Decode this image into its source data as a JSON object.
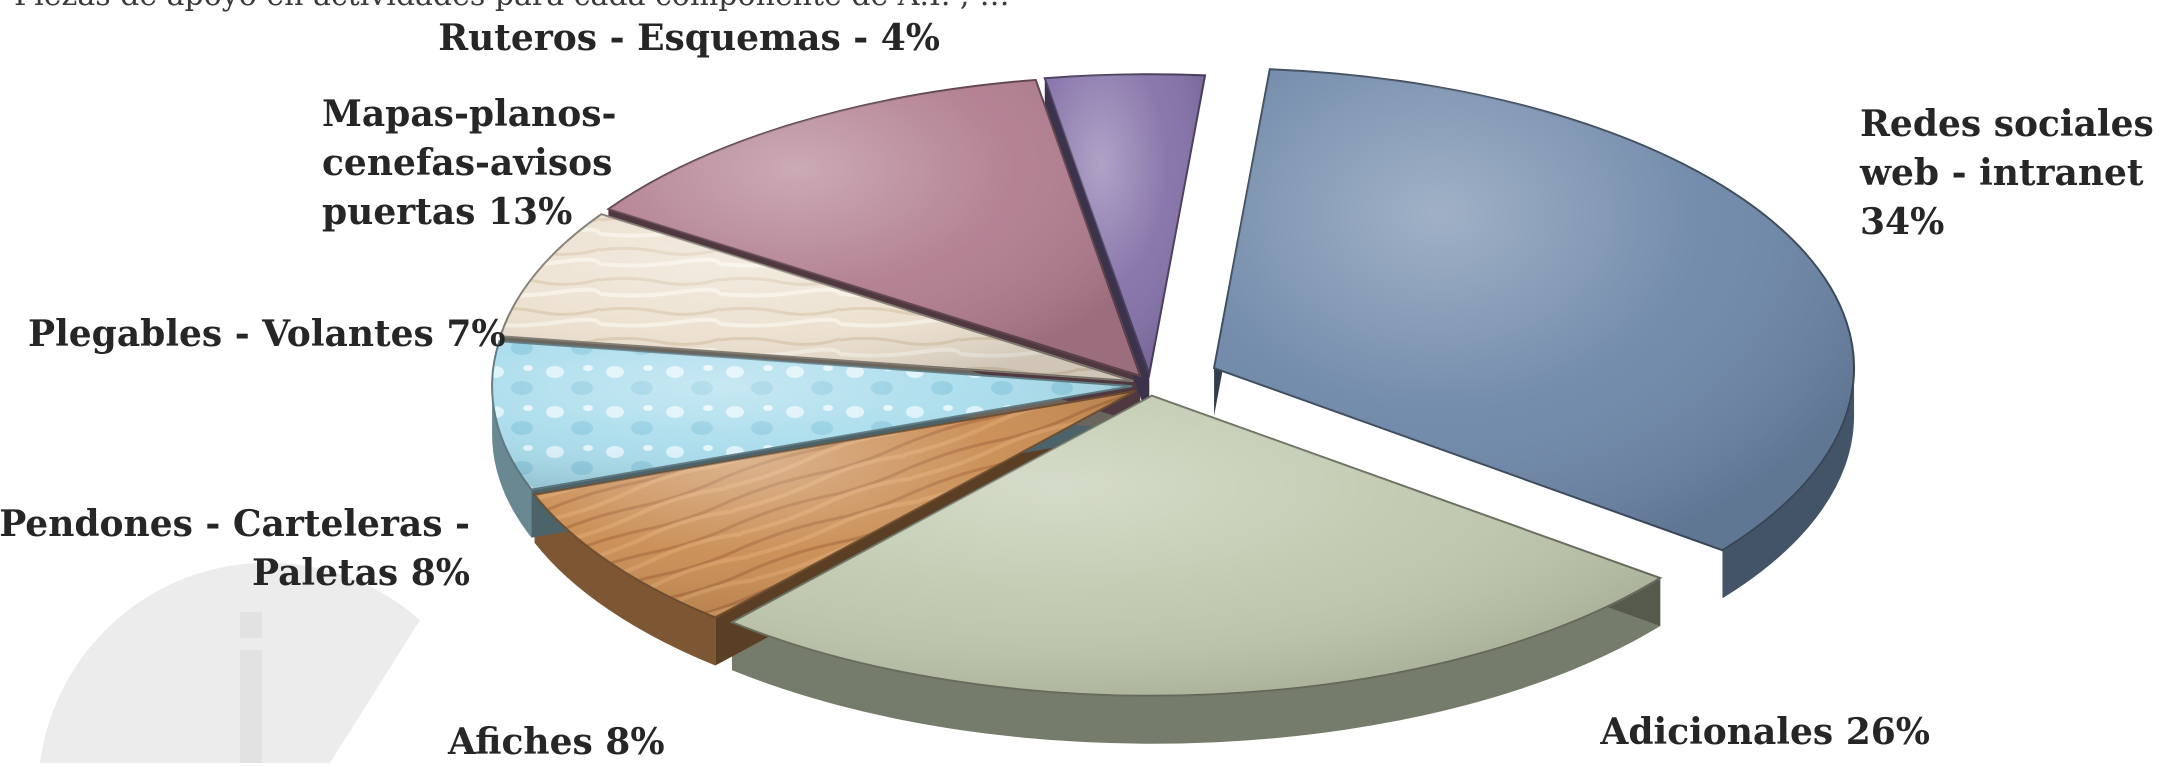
{
  "caption_partial": "Piezas de apoyo en actividades para cada componente de A.I. ; …",
  "colors": {
    "redes": "#6d87a8",
    "adicionales": "#bec8ac",
    "afiches": "#c98c52",
    "pendones": "#a9dcec",
    "plegables": "#ece0cf",
    "mapas": "#b07c8e",
    "ruteros": "#8471a8",
    "watermark": "#e6e6e6"
  },
  "chart_data": {
    "type": "pie",
    "style": "3d-exploded",
    "title": "",
    "legend": "none",
    "slices": [
      {
        "label": "Redes sociales - web - intranet",
        "value": 34,
        "display": [
          "Redes sociales -",
          "web - intranet",
          "34%"
        ],
        "color": "#6d87a8",
        "texture": "none",
        "explode": true
      },
      {
        "label": "Adicionales",
        "value": 26,
        "display": [
          "Adicionales 26%"
        ],
        "color": "#bec8ac",
        "texture": "none",
        "explode": false
      },
      {
        "label": "Afiches",
        "value": 8,
        "display": [
          "Afiches 8%"
        ],
        "color": "#c98c52",
        "texture": "wood",
        "explode": false
      },
      {
        "label": "Pendones - Carteleras - Paletas",
        "value": 8,
        "display": [
          "Pendones - Carteleras -",
          "Paletas 8%"
        ],
        "color": "#a9dcec",
        "texture": "water",
        "explode": false
      },
      {
        "label": "Plegables - Volantes",
        "value": 7,
        "display": [
          "Plegables - Volantes 7%"
        ],
        "color": "#ece0cf",
        "texture": "parchment",
        "explode": false
      },
      {
        "label": "Mapas-planos-cenefas-avisos puertas",
        "value": 13,
        "display": [
          "Mapas-planos-",
          "cenefas-avisos",
          "puertas 13%"
        ],
        "color": "#b07c8e",
        "texture": "none",
        "explode": false
      },
      {
        "label": "Ruteros - Esquemas",
        "value": 4,
        "display": [
          "Ruteros - Esquemas - 4%"
        ],
        "color": "#8471a8",
        "texture": "none",
        "explode": false
      }
    ]
  }
}
